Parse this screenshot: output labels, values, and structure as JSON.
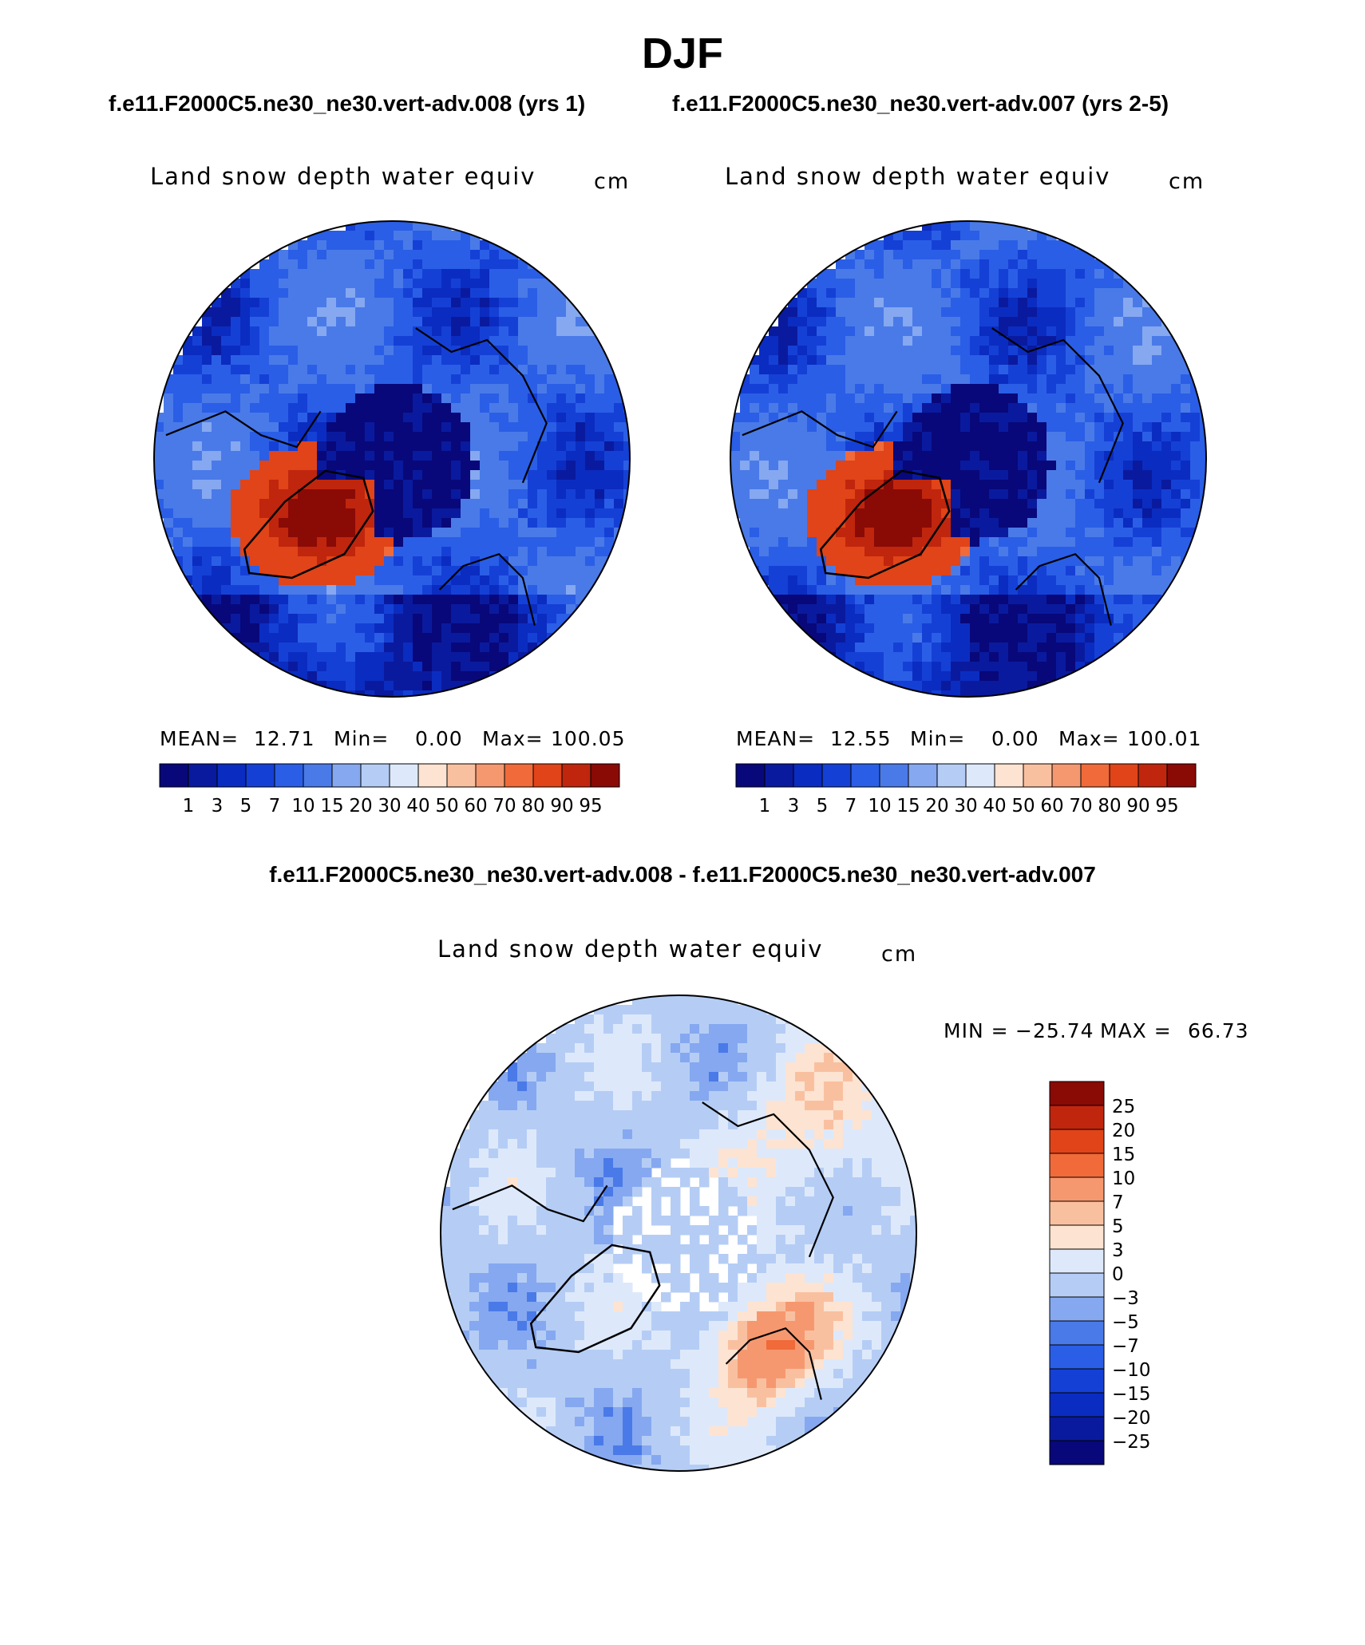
{
  "page_title": "DJF",
  "case1_title": "f.e11.F2000C5.ne30_ne30.vert-adv.008 (yrs 1)",
  "case2_title": "f.e11.F2000C5.ne30_ne30.vert-adv.007 (yrs 2-5)",
  "diff_title": "f.e11.F2000C5.ne30_ne30.vert-adv.008 - f.e11.F2000C5.ne30_ne30.vert-adv.007",
  "panels": [
    {
      "title": "Land snow depth water equiv",
      "units": "cm",
      "mean_label": "MEAN=",
      "mean": "12.71",
      "min_label": "Min=",
      "min": "0.00",
      "max_label": "Max=",
      "max": "100.05"
    },
    {
      "title": "Land snow depth water equiv",
      "units": "cm",
      "mean_label": "MEAN=",
      "mean": "12.55",
      "min_label": "Min=",
      "min": "0.00",
      "max_label": "Max=",
      "max": "100.01"
    }
  ],
  "diff_panel": {
    "title": "Land snow depth water equiv",
    "units": "cm",
    "min_label": "MIN =",
    "min": "−25.74",
    "max_label": "MAX =",
    "max": "66.73"
  },
  "chart_data": [
    {
      "type": "heatmap",
      "projection": "north polar stereographic",
      "title": "Land snow depth water equiv",
      "units": "cm",
      "mean": 12.71,
      "min": 0.0,
      "max": 100.05,
      "levels": [
        1,
        3,
        5,
        7,
        10,
        15,
        20,
        30,
        40,
        50,
        60,
        70,
        80,
        90,
        95
      ],
      "level_labels": [
        "1",
        "3",
        "5",
        "7",
        "10",
        "15",
        "20",
        "30",
        "40",
        "50",
        "60",
        "70",
        "80",
        "90",
        "95"
      ],
      "colors": [
        "#08087a",
        "#0a1a9e",
        "#0b2cc0",
        "#1540d6",
        "#2a5ee6",
        "#4a7ae8",
        "#85a8f0",
        "#b5cdf5",
        "#dde9fb",
        "#fde3d1",
        "#f9c0a0",
        "#f6986f",
        "#f06a3a",
        "#e04418",
        "#c0260d",
        "#8a0a06"
      ],
      "ocean_color": "#ffffff"
    },
    {
      "type": "heatmap",
      "projection": "north polar stereographic",
      "title": "Land snow depth water equiv",
      "units": "cm",
      "mean": 12.55,
      "min": 0.0,
      "max": 100.01,
      "levels": [
        1,
        3,
        5,
        7,
        10,
        15,
        20,
        30,
        40,
        50,
        60,
        70,
        80,
        90,
        95
      ],
      "level_labels": [
        "1",
        "3",
        "5",
        "7",
        "10",
        "15",
        "20",
        "30",
        "40",
        "50",
        "60",
        "70",
        "80",
        "90",
        "95"
      ],
      "colors": [
        "#08087a",
        "#0a1a9e",
        "#0b2cc0",
        "#1540d6",
        "#2a5ee6",
        "#4a7ae8",
        "#85a8f0",
        "#b5cdf5",
        "#dde9fb",
        "#fde3d1",
        "#f9c0a0",
        "#f6986f",
        "#f06a3a",
        "#e04418",
        "#c0260d",
        "#8a0a06"
      ],
      "ocean_color": "#ffffff"
    },
    {
      "type": "heatmap",
      "projection": "north polar stereographic",
      "title": "Land snow depth water equiv",
      "units": "cm",
      "min": -25.74,
      "max": 66.73,
      "levels": [
        -25,
        -20,
        -15,
        -10,
        -7,
        -5,
        -3,
        0,
        3,
        5,
        7,
        10,
        15,
        20,
        25
      ],
      "level_labels": [
        "−25",
        "−20",
        "−15",
        "−10",
        "−7",
        "−5",
        "−3",
        "0",
        "3",
        "5",
        "7",
        "10",
        "15",
        "20",
        "25"
      ],
      "colors": [
        "#08087a",
        "#0a1a9e",
        "#0b2cc0",
        "#1540d6",
        "#2a5ee6",
        "#4a7ae8",
        "#85a8f0",
        "#b5cdf5",
        "#dde9fb",
        "#fde3d1",
        "#f9c0a0",
        "#f6986f",
        "#f06a3a",
        "#e04418",
        "#c0260d",
        "#8a0a06"
      ],
      "ocean_color": "#ffffff"
    }
  ]
}
